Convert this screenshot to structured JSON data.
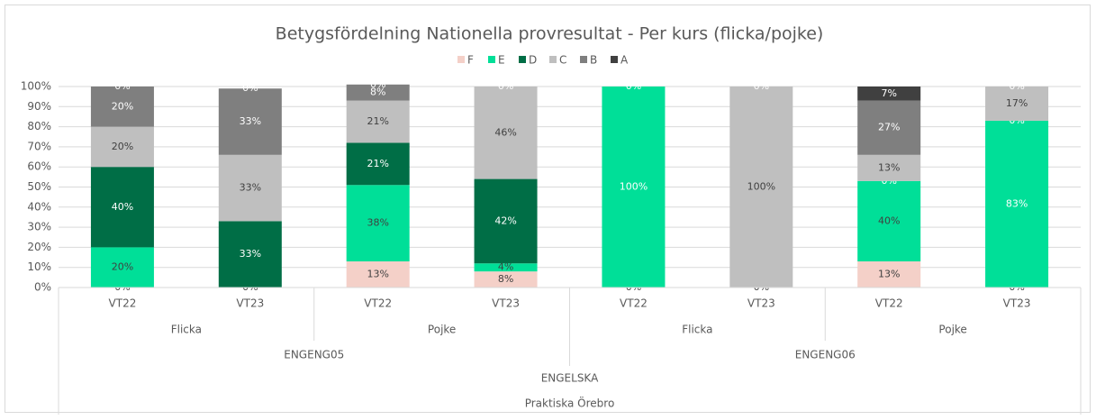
{
  "chart_data": {
    "type": "stacked-bar",
    "title": "Betygsfördelning Nationella provresultat - Per kurs (flicka/pojke)",
    "categories": [
      "VT22",
      "VT23",
      "VT22",
      "VT23",
      "VT22",
      "VT23",
      "VT22",
      "VT23"
    ],
    "category_groups": [
      [
        "Flicka",
        "Pojke",
        "Flicka",
        "Pojke"
      ],
      [
        "ENGENG05",
        "ENGENG06"
      ],
      [
        "ENGELSKA"
      ],
      [
        "Praktiska Örebro"
      ]
    ],
    "series": [
      {
        "name": "F",
        "color": "#f4d0c8",
        "values": [
          0,
          0,
          13,
          8,
          0,
          0,
          13,
          0
        ],
        "value_labels": [
          "0%",
          "0%",
          "13%",
          "8%",
          "0%",
          "0%",
          "13%",
          "0%"
        ]
      },
      {
        "name": "E",
        "color": "#00df98",
        "values": [
          20,
          null,
          38,
          4,
          100,
          null,
          40,
          83
        ],
        "value_labels": [
          "20%",
          null,
          "38%",
          "4%",
          "100%",
          null,
          "40%",
          "83%"
        ]
      },
      {
        "name": "D",
        "color": "#006e46",
        "values": [
          40,
          33,
          21,
          42,
          0,
          null,
          0,
          0
        ],
        "value_labels": [
          "40%",
          "33%",
          "21%",
          "42%",
          "0%",
          null,
          "0%",
          "0%"
        ]
      },
      {
        "name": "C",
        "color": "#bfbfbf",
        "values": [
          20,
          33,
          21,
          46,
          null,
          100,
          13,
          17
        ],
        "value_labels": [
          "20%",
          "33%",
          "21%",
          "46%",
          null,
          "100%",
          "13%",
          "17%"
        ]
      },
      {
        "name": "B",
        "color": "#7f7f7f",
        "values": [
          20,
          33,
          8,
          null,
          null,
          null,
          27,
          null
        ],
        "value_labels": [
          "20%",
          "33%",
          "8%",
          null,
          null,
          null,
          "27%",
          null
        ]
      },
      {
        "name": "A",
        "color": "#404040",
        "values": [
          0,
          0,
          0,
          0,
          null,
          0,
          7,
          0
        ],
        "value_labels": [
          "0%",
          "0%",
          "0%",
          "0%",
          null,
          "0%",
          "7%",
          "0%"
        ]
      }
    ],
    "ylim": [
      0,
      100
    ],
    "yticks": [
      {
        "value": 0,
        "label": "0%"
      },
      {
        "value": 10,
        "label": "10%"
      },
      {
        "value": 20,
        "label": "20%"
      },
      {
        "value": 30,
        "label": "30%"
      },
      {
        "value": 40,
        "label": "40%"
      },
      {
        "value": 50,
        "label": "50%"
      },
      {
        "value": 60,
        "label": "60%"
      },
      {
        "value": 70,
        "label": "70%"
      },
      {
        "value": 80,
        "label": "80%"
      },
      {
        "value": 90,
        "label": "90%"
      },
      {
        "value": 100,
        "label": "100%"
      }
    ],
    "grid": true,
    "legend": "top"
  }
}
